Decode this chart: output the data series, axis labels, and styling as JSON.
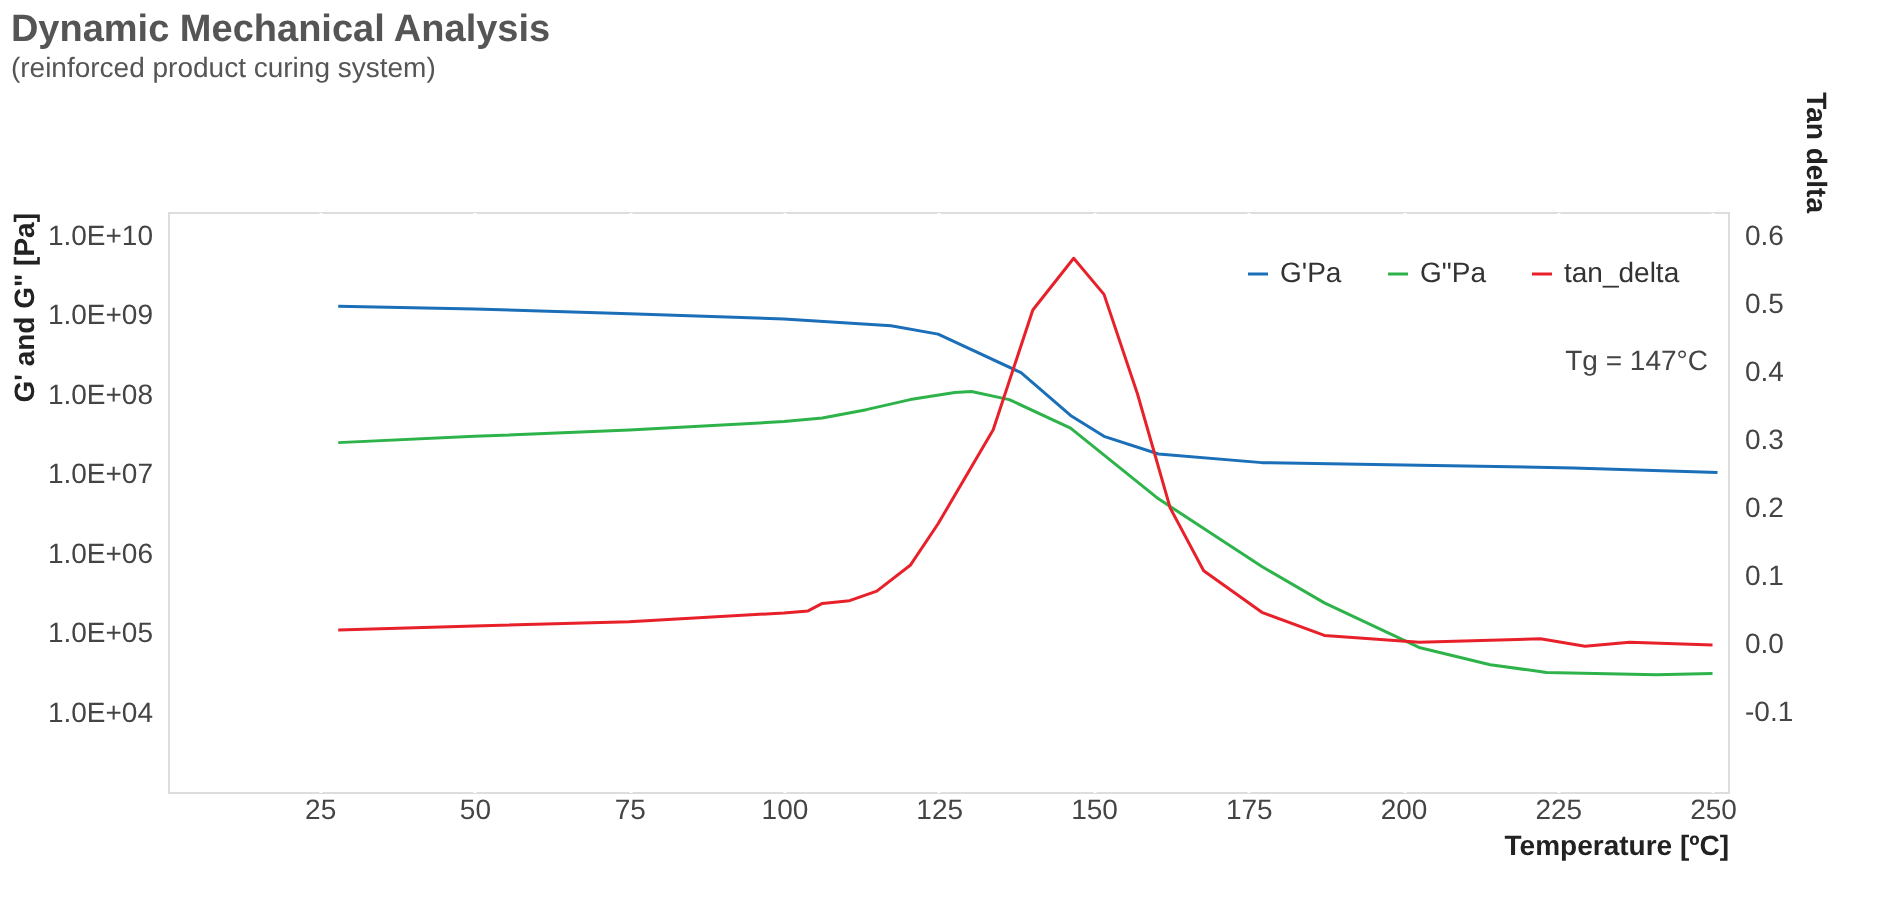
{
  "chart_data": {
    "type": "line",
    "title": "Dynamic Mechanical Analysis",
    "subtitle": "(reinforced product curing system)",
    "xlabel": "Temperature [ºC]",
    "ylabel": "G' and G\" [Pa]",
    "y2label": "Tan delta",
    "xlim": [
      0.5,
      252.5
    ],
    "xticks": [
      25,
      50,
      75,
      100,
      125,
      150,
      175,
      200,
      225,
      250
    ],
    "ylim": [
      1000,
      20000000000
    ],
    "yticks": [
      {
        "value": 10000,
        "label": "1.0E+04"
      },
      {
        "value": 100000,
        "label": "1.0E+05"
      },
      {
        "value": 1000000,
        "label": "1.0E+06"
      },
      {
        "value": 10000000,
        "label": "1.0E+07"
      },
      {
        "value": 100000000,
        "label": "1.0E+08"
      },
      {
        "value": 1000000000,
        "label": "1.0E+09"
      },
      {
        "value": 10000000000,
        "label": "1.0E+10"
      }
    ],
    "y2lim": [
      -0.217,
      0.635
    ],
    "y2ticks": [
      -0.1,
      {
        "value": 0,
        "label": "0.0"
      },
      0.1,
      0.2,
      0.3,
      0.4,
      0.5,
      0.6
    ],
    "log": "y",
    "grid": "x",
    "legend": "top right",
    "marker": "none",
    "line_style": "solid",
    "annotations": [
      "Tg = 147°C"
    ],
    "series": [
      {
        "name": "G'Pa",
        "color": "#1a6fb8",
        "x": [
          28,
          50,
          75,
          100,
          117.3,
          124.9,
          138.3,
          146.3,
          151.7,
          160.5,
          177.2,
          202.6,
          227.5,
          250.8
        ],
        "values": [
          1300000000.0,
          1200000000.0,
          1050000000.0,
          900000000.0,
          740000000.0,
          580000000.0,
          190000000.0,
          55000000.0,
          30000000.0,
          18000000.0,
          14000000.0,
          13000000.0,
          12000000.0,
          10500000.0
        ]
      },
      {
        "name": "G\"Pa",
        "color": "#2db34a",
        "x": [
          28,
          50,
          75,
          100,
          106.2,
          113.3,
          120.4,
          127.6,
          130.3,
          136.4,
          146.3,
          160.5,
          177.2,
          187.3,
          202.6,
          214.1,
          223.2,
          240.9,
          250
        ],
        "values": [
          25000000.0,
          30000000.0,
          36000000.0,
          46000000.0,
          51000000.0,
          65000000.0,
          87000000.0,
          107000000.0,
          110000000.0,
          87000000.0,
          38000000.0,
          4900000.0,
          690000.0,
          240000.0,
          66000.0,
          40000.0,
          32000.0,
          30000.0,
          31000.0
        ]
      },
      {
        "name": "tan_delta",
        "color": "#e8202a",
        "axis": "y2",
        "x": [
          28,
          50,
          75,
          100,
          103.9,
          106.2,
          110.6,
          115,
          120.4,
          124.9,
          133.8,
          140.2,
          146.8,
          151.7,
          157.1,
          162.4,
          167.8,
          177.2,
          187.3,
          202.6,
          222.2,
          229.4,
          236.6,
          250
        ],
        "values": [
          0.021,
          0.027,
          0.033,
          0.046,
          0.049,
          0.06,
          0.064,
          0.078,
          0.116,
          0.177,
          0.315,
          0.491,
          0.567,
          0.514,
          0.368,
          0.2,
          0.108,
          0.047,
          0.013,
          0.003,
          0.008,
          -0.003,
          0.003,
          -0.001
        ]
      }
    ]
  }
}
